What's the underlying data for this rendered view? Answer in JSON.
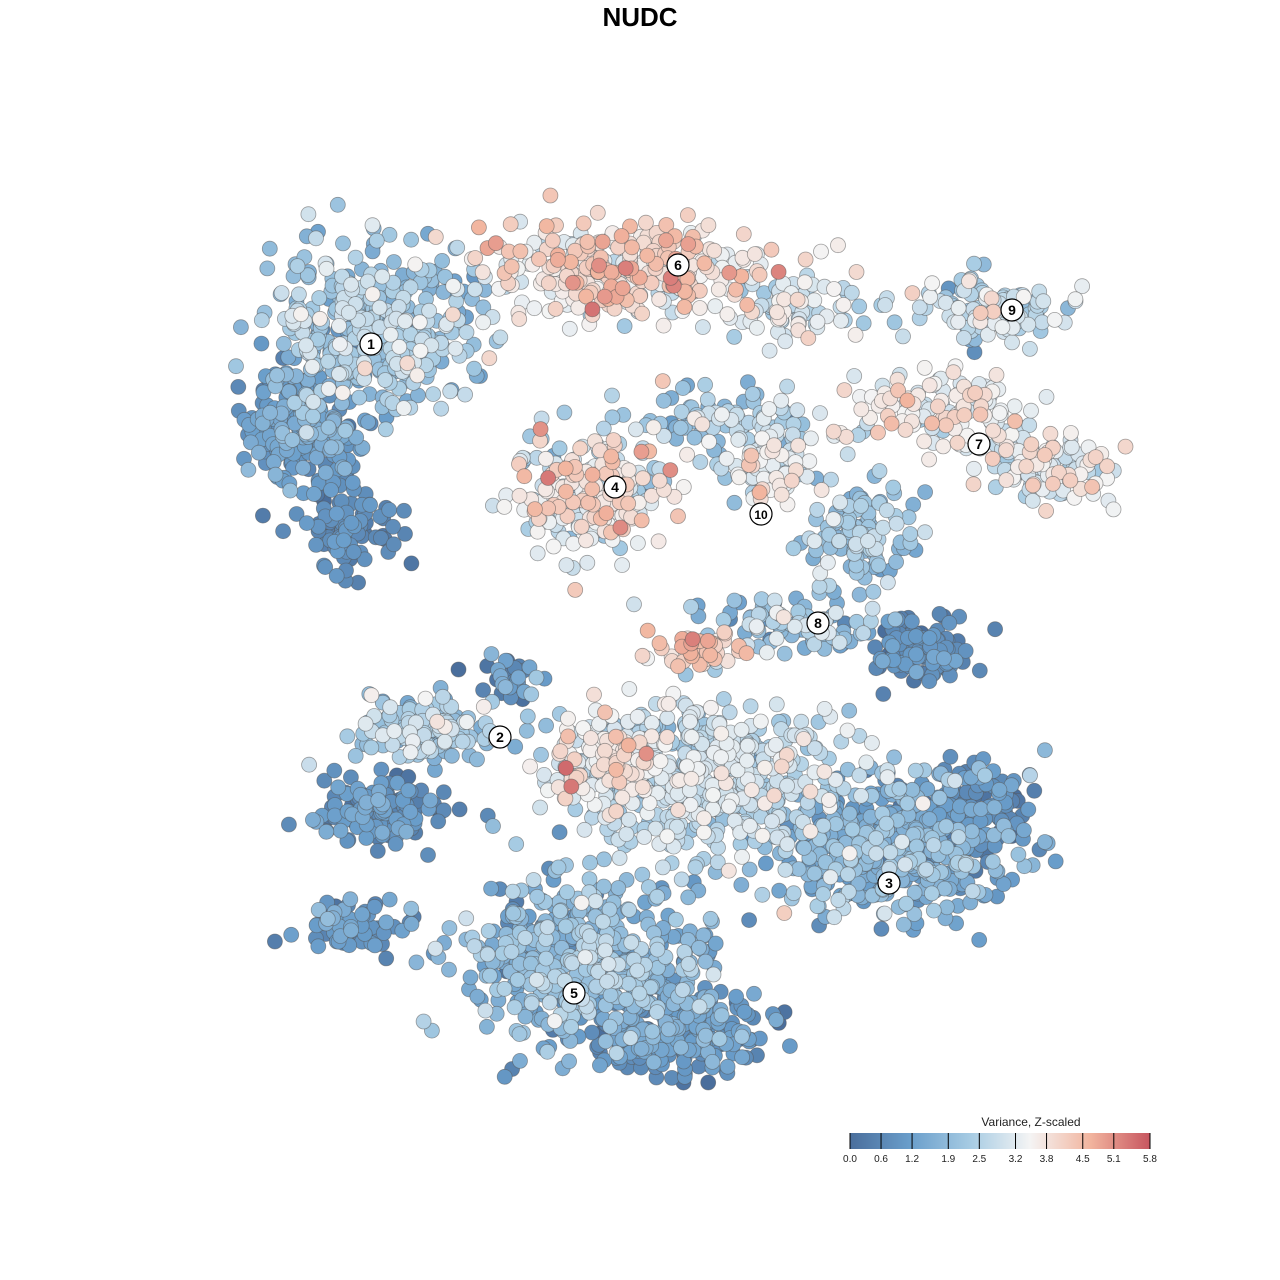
{
  "chart_data": {
    "type": "scatter",
    "title": "NUDC",
    "xlabel": "",
    "ylabel": "",
    "grid": false,
    "legend": {
      "title": "Variance, Z-scaled",
      "placement": "bottom-right",
      "range": [
        0.0,
        5.8
      ],
      "ticks": [
        0.0,
        0.6,
        1.2,
        1.9,
        2.5,
        3.2,
        3.8,
        4.5,
        5.1,
        5.8
      ],
      "tick_labels": [
        "0.0",
        "0.6",
        "1.2",
        "1.9",
        "2.5",
        "3.2",
        "3.8",
        "4.5",
        "5.1",
        "5.8"
      ],
      "colors": [
        "#4a6e9c",
        "#6a9ecb",
        "#a6cbe3",
        "#f4f4f4",
        "#f2b59f",
        "#c7555f"
      ]
    },
    "clusters": [
      {
        "label": "1",
        "x": 0.0,
        "y": 0.0
      },
      {
        "label": "2",
        "x": 0.0,
        "y": 0.0
      },
      {
        "label": "3",
        "x": 0.0,
        "y": 0.0
      },
      {
        "label": "4",
        "x": 0.0,
        "y": 0.0
      },
      {
        "label": "5",
        "x": 0.0,
        "y": 0.0
      },
      {
        "label": "6",
        "x": 0.0,
        "y": 0.0
      },
      {
        "label": "7",
        "x": 0.0,
        "y": 0.0
      },
      {
        "label": "8",
        "x": 0.0,
        "y": 0.0
      },
      {
        "label": "9",
        "x": 0.0,
        "y": 0.0
      },
      {
        "label": "10",
        "x": 0.0,
        "y": 0.0
      }
    ]
  }
}
